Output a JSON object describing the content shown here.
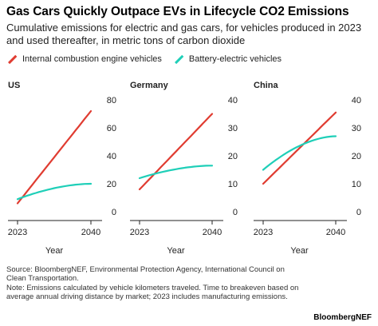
{
  "title": "Gas Cars Quickly Outpace EVs in Lifecycle CO2 Emissions",
  "subtitle": "Cumulative emissions for electric and gas cars, for vehicles produced in 2023 and used thereafter, in metric tons of carbon dioxide",
  "legend": [
    {
      "label": "Internal combustion engine vehicles",
      "color": "#e03c31"
    },
    {
      "label": "Battery-electric vehicles",
      "color": "#1fcfb8"
    }
  ],
  "footer": {
    "source": "Source: BloombergNEF, Environmental Protection Agency, International Council on Clean Transportation.",
    "note": "Note: Emissions calculated by vehicle kilometers traveled. Time to breakeven based on average annual driving distance by market; 2023 includes manufacturing emissions."
  },
  "brand": "BloombergNEF",
  "colors": {
    "ice": "#e03c31",
    "bev": "#1fcfb8",
    "axis": "#222222"
  },
  "chart_data": [
    {
      "type": "line",
      "title": "US",
      "xlabel": "Year",
      "x_ticks": [
        "2023",
        "2040"
      ],
      "y_ticks": [
        "0",
        "20",
        "40",
        "60",
        "80"
      ],
      "ylim": [
        0,
        80
      ],
      "x": [
        2023,
        2040
      ],
      "series": [
        {
          "name": "Internal combustion engine vehicles",
          "values": [
            6,
            72
          ]
        },
        {
          "name": "Battery-electric vehicles",
          "values": [
            9,
            20
          ]
        }
      ]
    },
    {
      "type": "line",
      "title": "Germany",
      "xlabel": "Year",
      "x_ticks": [
        "2023",
        "2040"
      ],
      "y_ticks": [
        "0",
        "10",
        "20",
        "30",
        "40"
      ],
      "ylim": [
        0,
        40
      ],
      "x": [
        2023,
        2040
      ],
      "series": [
        {
          "name": "Internal combustion engine vehicles",
          "values": [
            8,
            35
          ]
        },
        {
          "name": "Battery-electric vehicles",
          "values": [
            12,
            16.5
          ]
        }
      ]
    },
    {
      "type": "line",
      "title": "China",
      "xlabel": "Year",
      "x_ticks": [
        "2023",
        "2040"
      ],
      "y_ticks": [
        "0",
        "10",
        "20",
        "30",
        "40"
      ],
      "ylim": [
        0,
        40
      ],
      "x": [
        2023,
        2040
      ],
      "series": [
        {
          "name": "Internal combustion engine vehicles",
          "values": [
            10,
            35.5
          ]
        },
        {
          "name": "Battery-electric vehicles",
          "values": [
            15,
            27
          ]
        }
      ]
    }
  ]
}
